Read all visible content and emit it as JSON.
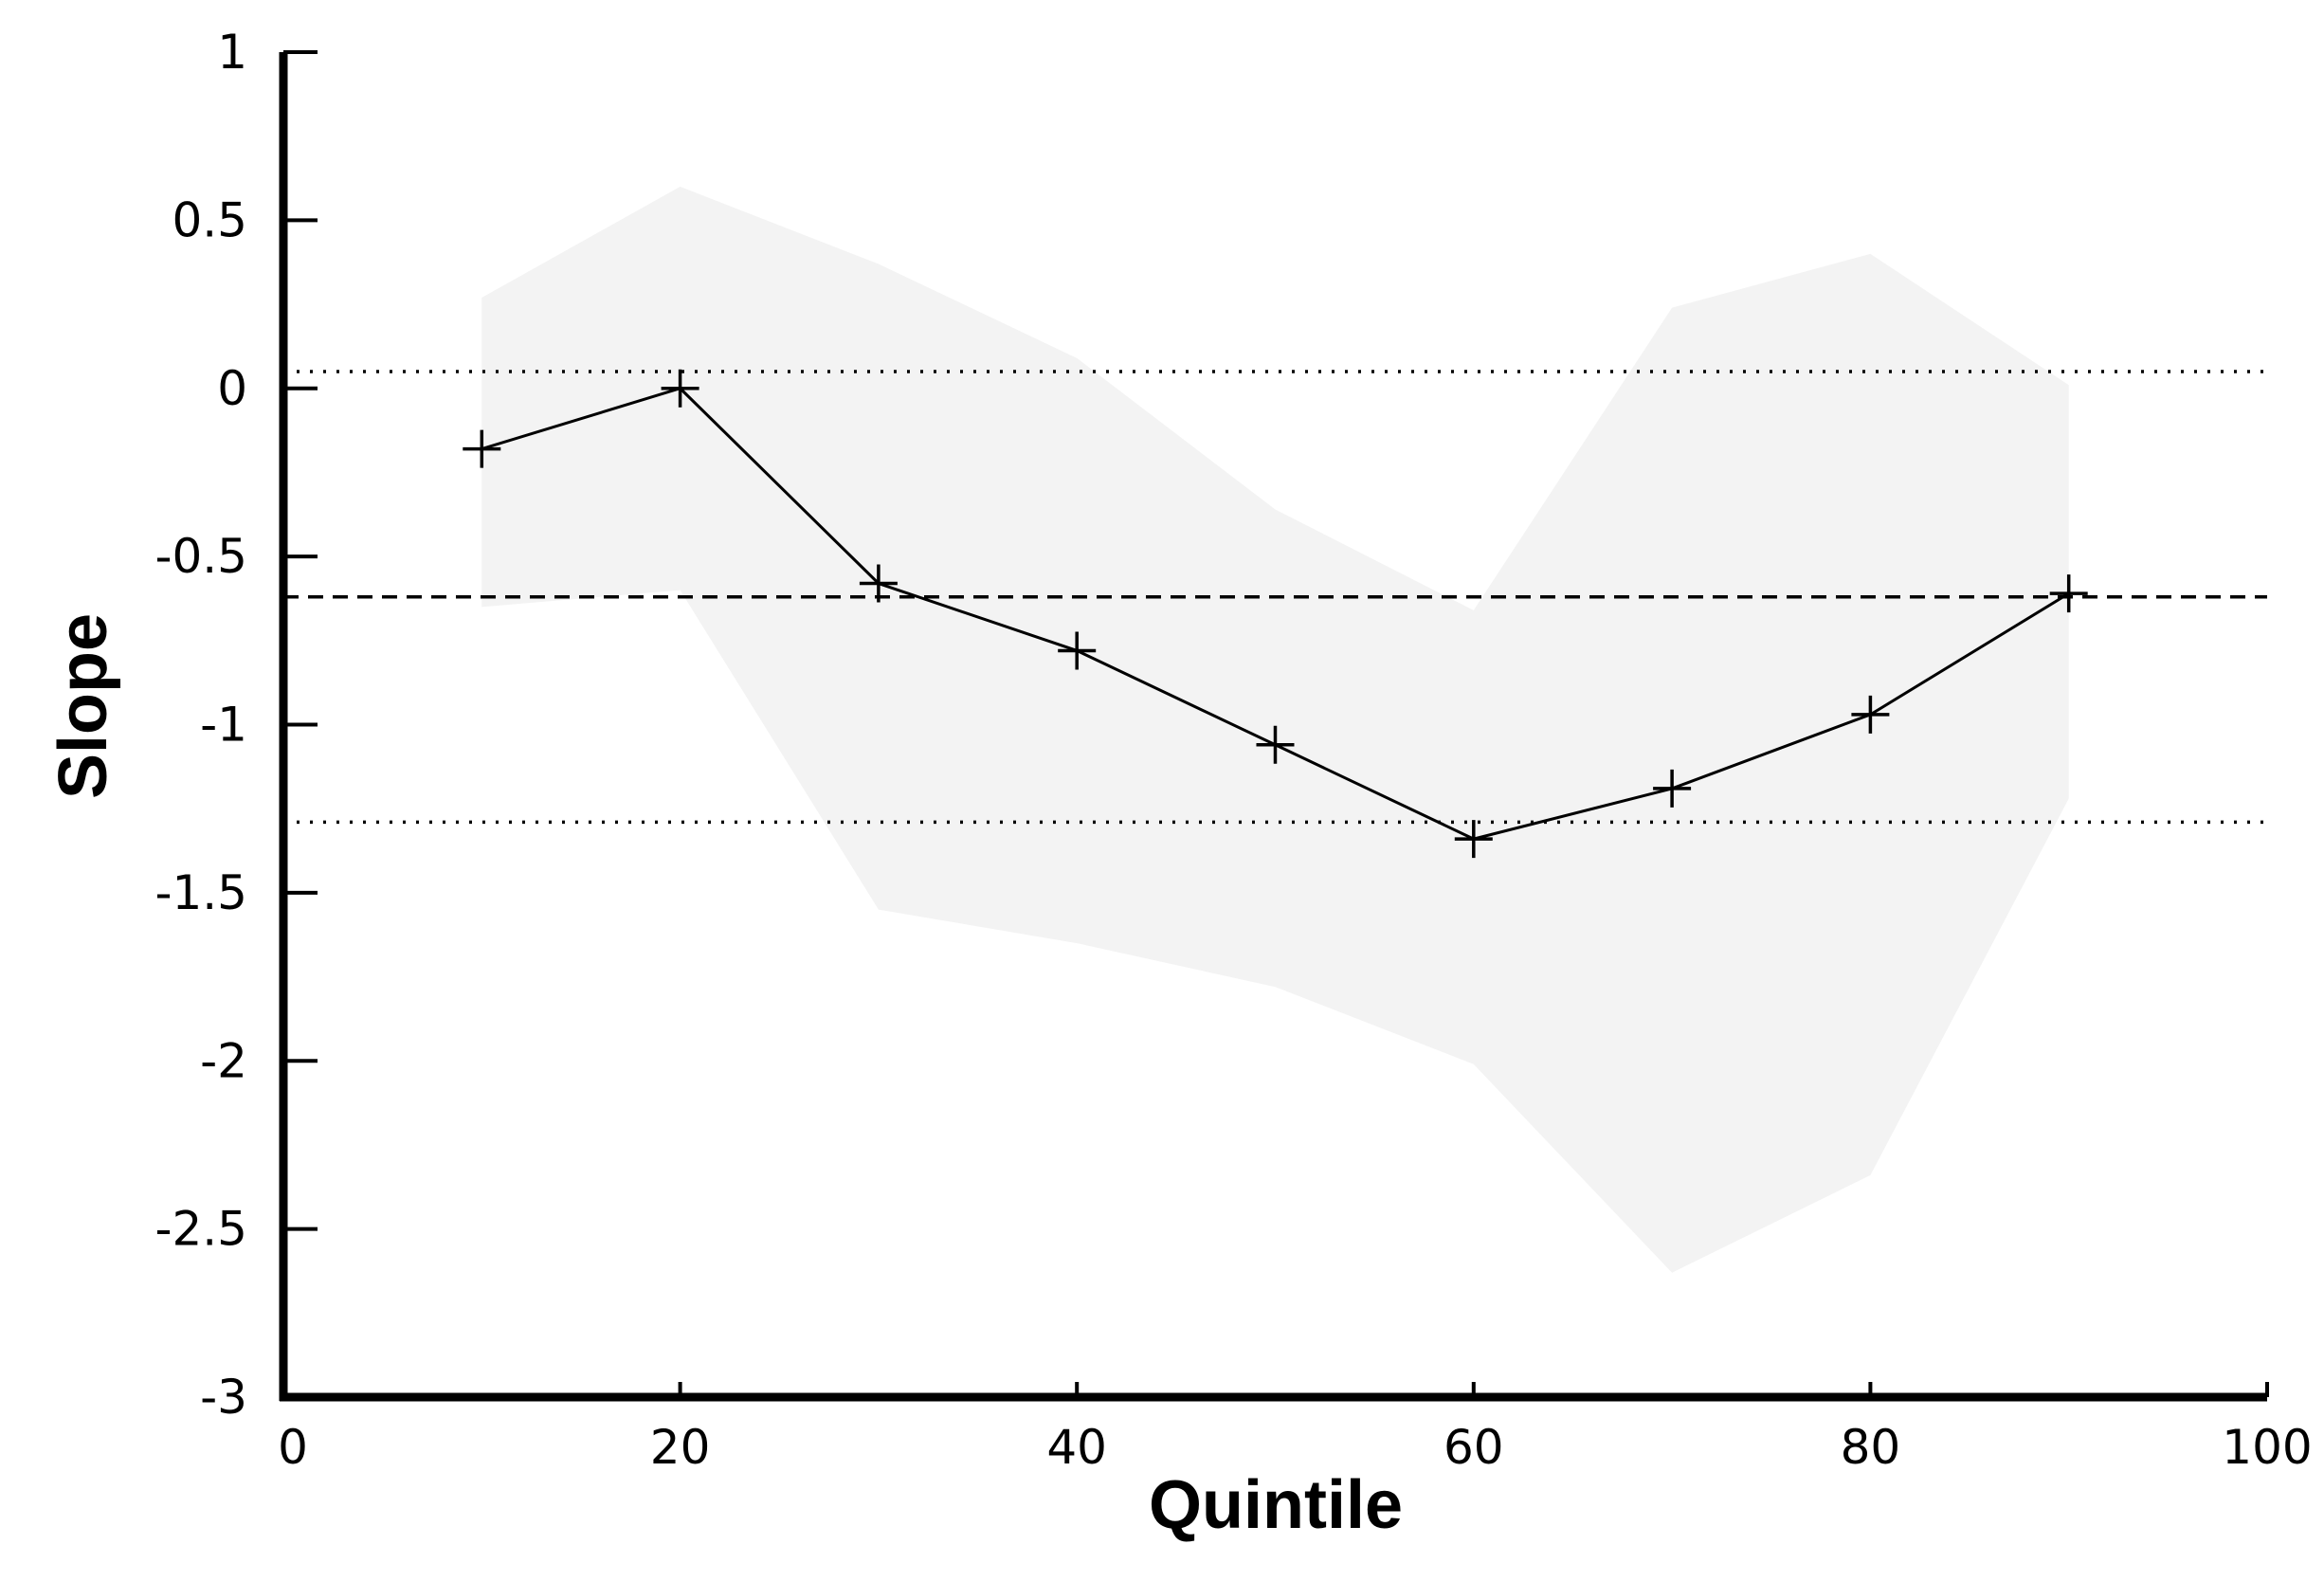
{
  "chart_data": {
    "type": "line",
    "xlabel": "Quintile",
    "ylabel": "Slope",
    "x": [
      10,
      20,
      30,
      40,
      50,
      60,
      70,
      80,
      90
    ],
    "series": [
      {
        "color": "#000000",
        "marker": "plus",
        "values": [
          -0.18,
          0.0,
          -0.58,
          -0.78,
          -1.06,
          -1.34,
          -1.19,
          -0.97,
          -0.61
        ]
      }
    ],
    "band": {
      "color": "#f3f3f3",
      "lower": [
        -0.65,
        -0.6,
        -1.55,
        -1.65,
        -1.78,
        -2.01,
        -2.63,
        -2.34,
        -1.22
      ],
      "upper": [
        0.27,
        0.6,
        0.37,
        0.09,
        -0.36,
        -0.66,
        0.24,
        0.4,
        0.01
      ]
    },
    "hlines": [
      {
        "value": 0.05,
        "style": "dotted"
      },
      {
        "value": -0.62,
        "style": "dashed"
      },
      {
        "value": -1.29,
        "style": "dotted"
      }
    ],
    "xlim": [
      0,
      100
    ],
    "xticks": [
      0,
      20,
      40,
      60,
      80,
      100
    ],
    "ylim": [
      -3,
      1
    ],
    "yticks": [
      1,
      0.5,
      0,
      -0.5,
      -1,
      -1.5,
      -2,
      -2.5,
      -3
    ],
    "grid": false
  }
}
